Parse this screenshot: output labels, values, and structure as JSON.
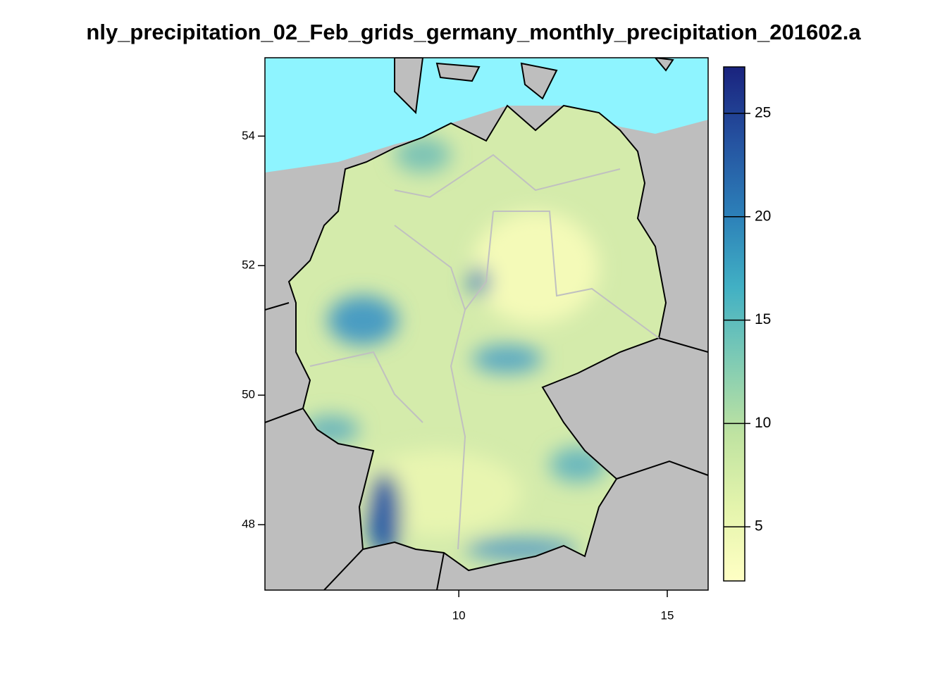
{
  "chart_data": {
    "type": "raster-map",
    "title": "nly_precipitation_02_Feb_grids_germany_monthly_precipitation_201602.a",
    "xlim": [
      5.35,
      15.98
    ],
    "xticks": [
      10,
      15
    ],
    "ylim": [
      46.99,
      55.21
    ],
    "yticks": [
      48,
      50,
      52,
      54
    ],
    "colorbar_lim": [
      2.38,
      27.25
    ],
    "colorbar_ticks": [
      5,
      10,
      15,
      20,
      25
    ],
    "colorbar_colors": [
      "#ffffc4",
      "#e4f4ac",
      "#bfe3a1",
      "#7fcbb4",
      "#41b0c4",
      "#2c7fb8",
      "#2552a0",
      "#1a237e"
    ]
  }
}
